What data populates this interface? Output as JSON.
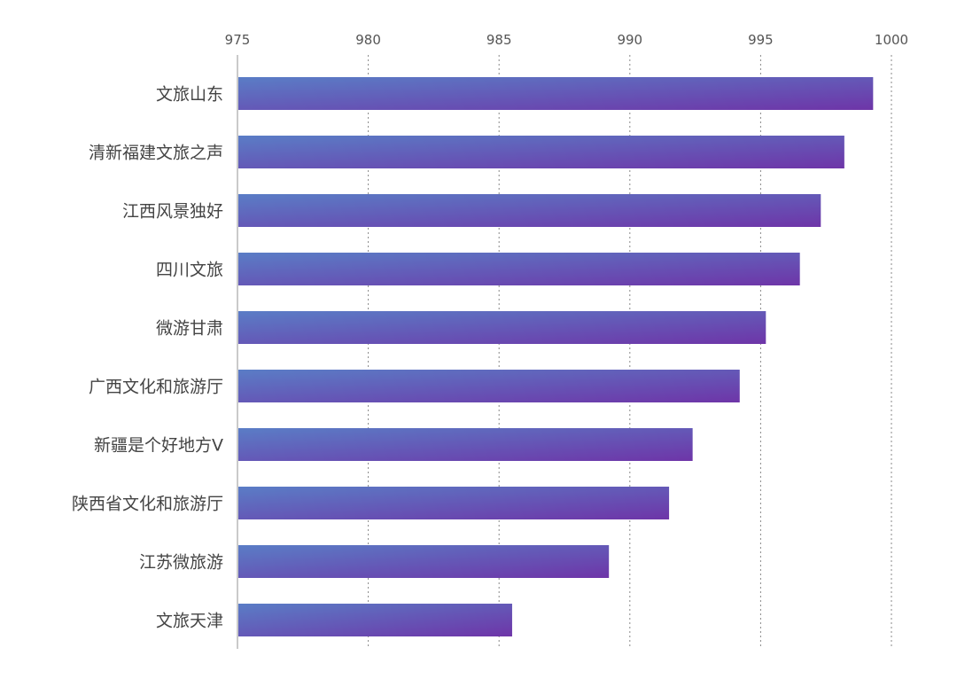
{
  "chart_data": {
    "type": "bar",
    "orientation": "horizontal",
    "categories": [
      "文旅山东",
      "清新福建文旅之声",
      "江西风景独好",
      "四川文旅",
      "微游甘肃",
      "广西文化和旅游厅",
      "新疆是个好地方V",
      "陕西省文化和旅游厅",
      "江苏微旅游",
      "文旅天津"
    ],
    "values": [
      999.3,
      998.2,
      997.3,
      996.5,
      995.2,
      994.2,
      992.4,
      991.5,
      989.2,
      985.5
    ],
    "xlim": [
      975,
      1000
    ],
    "xticks": [
      "975",
      "980",
      "985",
      "990",
      "995",
      "1000"
    ],
    "x_axis_position": "top",
    "grid": true,
    "colors": {
      "bar_start": "#5a7dc6",
      "bar_end": "#6e35a8"
    }
  }
}
